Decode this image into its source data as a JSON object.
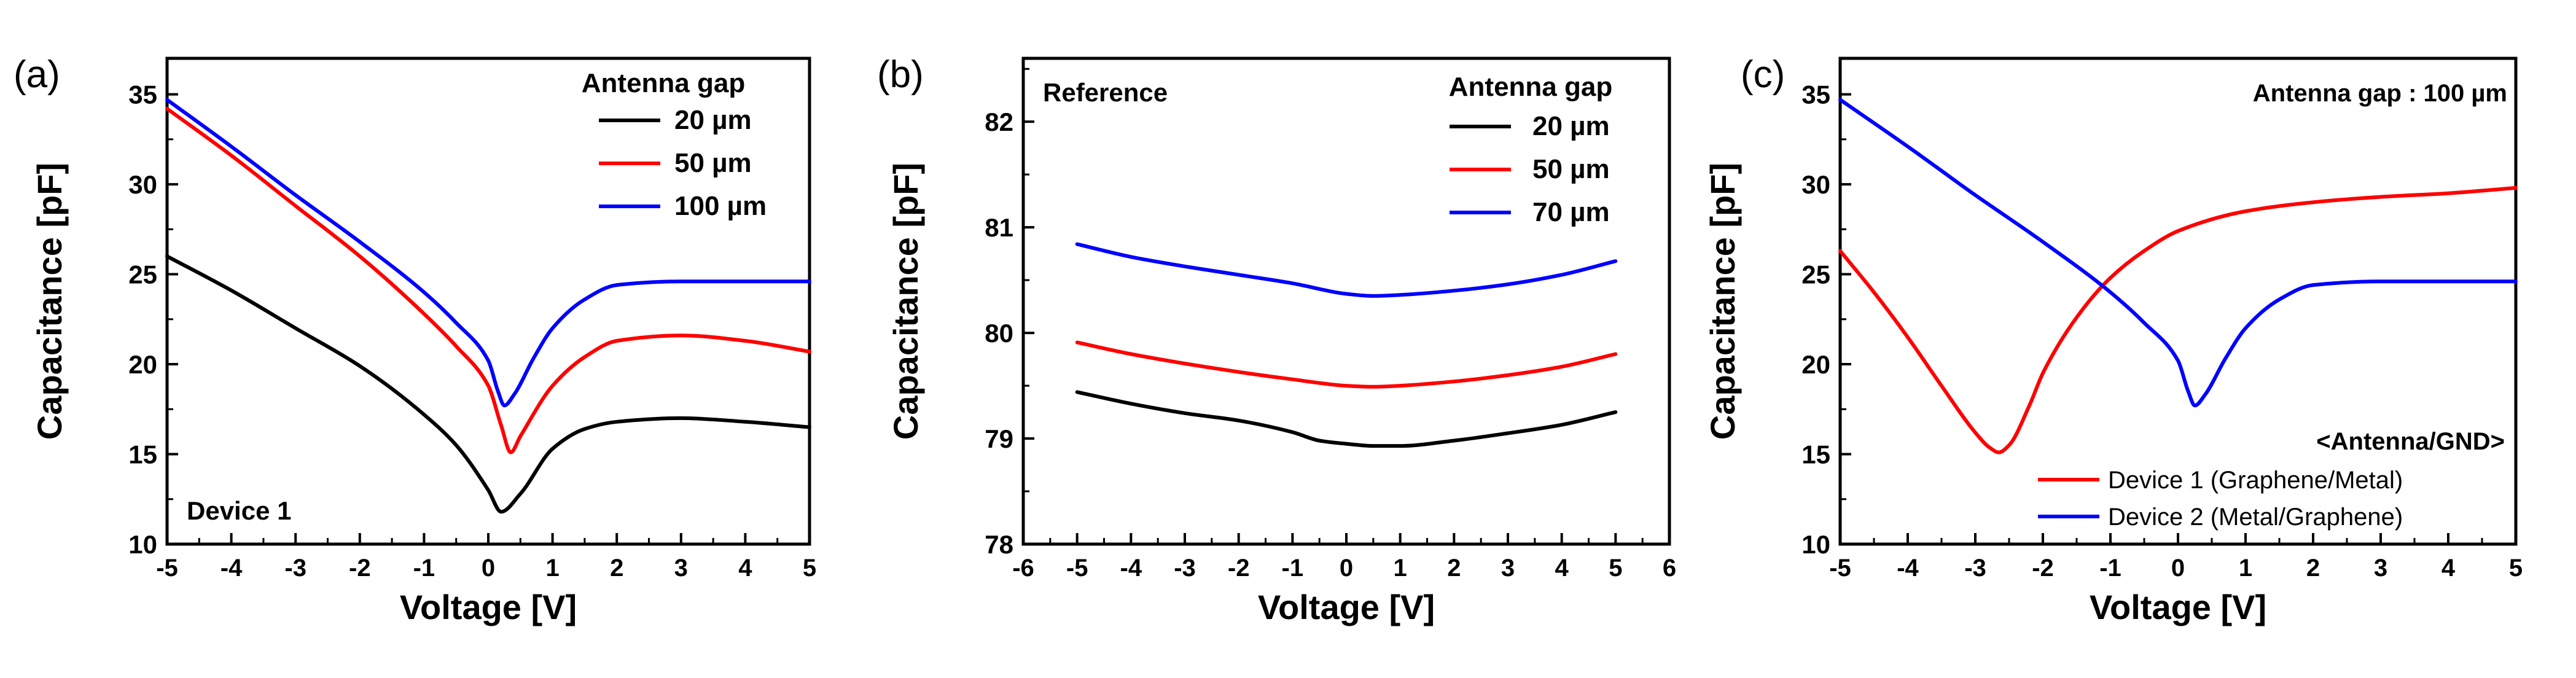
{
  "chart_data": [
    {
      "panel": "(a)",
      "type": "line",
      "xlabel": "Voltage [V]",
      "ylabel": "Capacitance [pF]",
      "xlim": [
        -5,
        5
      ],
      "ylim": [
        10,
        37
      ],
      "xticks": [
        "-5",
        "-4",
        "-3",
        "-2",
        "-1",
        "0",
        "1",
        "2",
        "3",
        "4",
        "5"
      ],
      "yticks": [
        "10",
        "15",
        "20",
        "25",
        "30",
        "35"
      ],
      "legend_title": "Antenna gap",
      "annotation": "Device 1",
      "series": [
        {
          "name": "20 µm",
          "color": "#000000",
          "x": [
            -5,
            -4,
            -3,
            -2,
            -1,
            -0.5,
            0,
            0.2,
            0.5,
            1,
            1.5,
            2,
            3,
            4,
            5
          ],
          "y": [
            26.0,
            24.1,
            22.0,
            19.9,
            17.2,
            15.5,
            13.0,
            11.8,
            12.8,
            15.3,
            16.4,
            16.8,
            17.0,
            16.8,
            16.5
          ]
        },
        {
          "name": "50 µm",
          "color": "#ff0000",
          "x": [
            -5,
            -4,
            -3,
            -2,
            -1,
            -0.5,
            0,
            0.2,
            0.35,
            0.5,
            1,
            1.5,
            2,
            3,
            4,
            5
          ],
          "y": [
            34.2,
            31.6,
            28.8,
            26.0,
            22.8,
            21.0,
            18.8,
            16.6,
            15.1,
            16.0,
            18.8,
            20.4,
            21.3,
            21.6,
            21.3,
            20.7
          ]
        },
        {
          "name": "100 µm",
          "color": "#0000ff",
          "x": [
            -5,
            -4,
            -3,
            -2,
            -1,
            -0.5,
            0,
            0.15,
            0.25,
            0.4,
            0.7,
            1,
            1.5,
            2,
            3,
            4,
            5
          ],
          "y": [
            34.7,
            32.1,
            29.4,
            26.8,
            24.0,
            22.3,
            20.2,
            18.5,
            17.7,
            18.3,
            20.3,
            22.0,
            23.6,
            24.4,
            24.6,
            24.6,
            24.6
          ]
        }
      ]
    },
    {
      "panel": "(b)",
      "type": "line",
      "xlabel": "Voltage [V]",
      "ylabel": "Capacitance [pF]",
      "xlim": [
        -6,
        6
      ],
      "ylim": [
        78,
        82.6
      ],
      "xticks": [
        "-6",
        "-5",
        "-4",
        "-3",
        "-2",
        "-1",
        "0",
        "1",
        "2",
        "3",
        "4",
        "5",
        "6"
      ],
      "yticks": [
        "78",
        "79",
        "80",
        "81",
        "82"
      ],
      "legend_title": "Antenna gap",
      "annotation": "Reference",
      "series": [
        {
          "name": "20 µm",
          "color": "#000000",
          "x": [
            -5,
            -4,
            -3,
            -2,
            -1,
            -0.5,
            0,
            0.5,
            1,
            2,
            3,
            4,
            5
          ],
          "y": [
            79.44,
            79.33,
            79.24,
            79.17,
            79.06,
            78.98,
            78.95,
            78.93,
            78.93,
            78.98,
            79.05,
            79.13,
            79.25
          ]
        },
        {
          "name": "50 µm",
          "color": "#ff0000",
          "x": [
            -5,
            -4,
            -3,
            -2,
            -1,
            0,
            0.5,
            1,
            2,
            3,
            4,
            5
          ],
          "y": [
            79.91,
            79.8,
            79.71,
            79.63,
            79.56,
            79.5,
            79.49,
            79.5,
            79.54,
            79.6,
            79.68,
            79.8
          ]
        },
        {
          "name": "70 µm",
          "color": "#0000ff",
          "x": [
            -5,
            -4,
            -3,
            -2,
            -1,
            0,
            0.5,
            1,
            2,
            3,
            4,
            5
          ],
          "y": [
            80.84,
            80.72,
            80.63,
            80.55,
            80.47,
            80.37,
            80.35,
            80.36,
            80.4,
            80.46,
            80.55,
            80.68
          ]
        }
      ]
    },
    {
      "panel": "(c)",
      "type": "line",
      "xlabel": "Voltage [V]",
      "ylabel": "Capacitance [pF]",
      "xlim": [
        -5,
        5
      ],
      "ylim": [
        10,
        37
      ],
      "xticks": [
        "-5",
        "-4",
        "-3",
        "-2",
        "-1",
        "0",
        "1",
        "2",
        "3",
        "4",
        "5"
      ],
      "yticks": [
        "10",
        "15",
        "20",
        "25",
        "30",
        "35"
      ],
      "legend_title": "<Antenna/GND>",
      "annotation": "Antenna gap : 100 µm",
      "series": [
        {
          "name": "Device 1 (Graphene/Metal)",
          "color": "#ff0000",
          "x": [
            -5,
            -4.5,
            -4,
            -3.5,
            -3,
            -2.8,
            -2.65,
            -2.5,
            -2.2,
            -2,
            -1.5,
            -1,
            -0.5,
            0,
            1,
            2,
            3,
            4,
            5
          ],
          "y": [
            26.3,
            24.0,
            21.5,
            18.8,
            16.2,
            15.4,
            15.1,
            15.5,
            17.7,
            19.5,
            22.6,
            24.8,
            26.3,
            27.4,
            28.5,
            29.0,
            29.3,
            29.5,
            29.8
          ]
        },
        {
          "name": "Device 2 (Metal/Graphene)",
          "color": "#0000ff",
          "x": [
            -5,
            -4,
            -3,
            -2,
            -1,
            -0.5,
            0,
            0.15,
            0.25,
            0.4,
            0.7,
            1,
            1.5,
            2,
            3,
            4,
            5
          ],
          "y": [
            34.7,
            32.1,
            29.4,
            26.8,
            24.0,
            22.3,
            20.2,
            18.5,
            17.7,
            18.3,
            20.3,
            22.0,
            23.6,
            24.4,
            24.6,
            24.6,
            24.6
          ]
        }
      ]
    }
  ]
}
